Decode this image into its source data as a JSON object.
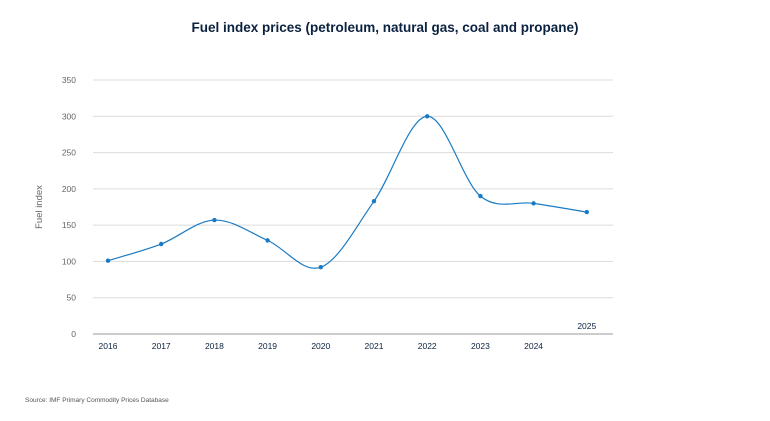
{
  "chart_data": {
    "type": "line",
    "title": "Fuel index prices (petroleum, natural gas, coal and propane)",
    "xlabel": "",
    "ylabel": "Fuel index",
    "x": [
      "2016",
      "2017",
      "2018",
      "2019",
      "2020",
      "2021",
      "2022",
      "2023",
      "2024",
      "2025"
    ],
    "values": [
      101,
      124,
      157,
      129,
      92,
      183,
      300,
      190,
      180,
      168
    ],
    "ylim": [
      0,
      350
    ],
    "yticks": [
      "0",
      "50",
      "100",
      "150",
      "200",
      "250",
      "300",
      "350"
    ],
    "grid": true,
    "smooth": true,
    "markers": true,
    "line_color": "#1a7bc4",
    "source": "Source: IMF Primary Commodity Prices Database"
  }
}
